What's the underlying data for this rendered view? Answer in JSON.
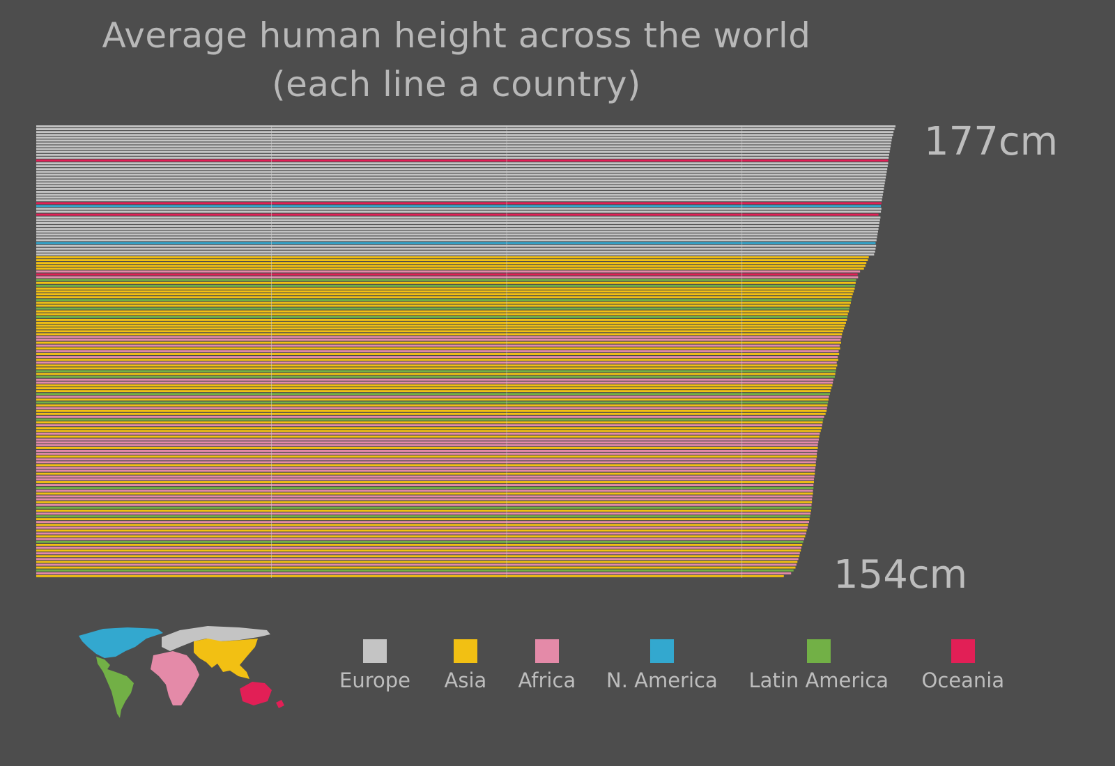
{
  "title_line1": "Average human height across the world",
  "title_line2": "(each line a country)",
  "max_label": "177cm",
  "min_label": "154cm",
  "colors": {
    "background": "#4d4d4d",
    "Europe": "#c4c4c4",
    "Asia": "#f2c013",
    "Africa": "#e48aa8",
    "N. America": "#33a8cf",
    "Latin America": "#72b046",
    "Oceania": "#e21f56",
    "grid": "#d0d0d0"
  },
  "legend": [
    {
      "region": "Europe",
      "label": "Europe"
    },
    {
      "region": "Asia",
      "label": "Asia"
    },
    {
      "region": "Africa",
      "label": "Africa"
    },
    {
      "region": "N. America",
      "label": "N. America"
    },
    {
      "region": "Latin America",
      "label": "Latin America"
    },
    {
      "region": "Oceania",
      "label": "Oceania"
    }
  ],
  "map_icon": "world-map-by-region",
  "chart_data": {
    "type": "bar",
    "orientation": "horizontal",
    "sort": "descending",
    "value_unit": "cm",
    "xlim": [
      0,
      177
    ],
    "grid": "vertical",
    "max_value": 177,
    "min_value": 154,
    "series": [
      {
        "name": "Europe",
        "values": [
          177.0,
          176.8,
          176.6,
          176.5,
          176.3,
          176.2,
          176.1,
          176.0,
          175.9,
          175.8,
          175.7,
          175.6,
          175.5,
          175.4,
          175.3,
          175.2,
          175.1,
          175.0,
          174.9,
          174.8,
          174.7,
          174.6,
          174.5,
          174.4,
          174.3,
          174.2,
          174.1,
          174.0,
          173.9,
          173.8,
          173.7,
          173.6,
          173.5,
          173.4,
          173.3,
          173.2,
          173.1,
          173.0,
          172.9,
          172.8,
          172.6
        ]
      },
      {
        "name": "Asia",
        "values": [
          171.5,
          171.3,
          171.0,
          170.8,
          170.5,
          168.8,
          168.6,
          168.4,
          168.2,
          168.0,
          167.8,
          167.6,
          167.4,
          167.2,
          167.0,
          166.8,
          166.6,
          166.4,
          166.2,
          166.0,
          165.8,
          165.6,
          165.4,
          165.2,
          165.0,
          164.8,
          164.6,
          164.0,
          163.8,
          163.6,
          163.2,
          163.0,
          162.8,
          162.6,
          162.0,
          161.8,
          161.6,
          161.3,
          161.0,
          160.8,
          160.6,
          160.4,
          160.2,
          160.0,
          159.8,
          159.6,
          159.3,
          159.0,
          158.7,
          158.4,
          157.8,
          157.5,
          157.2,
          156.8,
          156.4,
          154.0
        ]
      },
      {
        "name": "Africa",
        "values": [
          169.7,
          169.3,
          165.9,
          165.7,
          165.5,
          165.3,
          165.1,
          164.9,
          164.2,
          164.1,
          163.3,
          162.9,
          162.3,
          161.9,
          161.4,
          161.2,
          161.1,
          161.0,
          160.9,
          160.8,
          160.7,
          160.6,
          160.5,
          160.4,
          160.3,
          160.2,
          160.1,
          160.0,
          159.9,
          159.8,
          159.7,
          159.5,
          159.2,
          158.9,
          158.6,
          158.2,
          157.6,
          157.3,
          157.0,
          156.6,
          155.5
        ]
      },
      {
        "name": "N. America",
        "values": [
          174.0,
          172.9
        ]
      },
      {
        "name": "Latin America",
        "values": [
          168.9,
          168.7,
          167.9,
          167.5,
          167.1,
          164.7,
          164.5,
          163.5,
          163.1,
          162.1,
          160.1,
          159.7,
          159.4,
          158.0,
          156.0
        ]
      },
      {
        "name": "Oceania",
        "values": [
          175.5,
          174.1,
          173.5,
          169.2
        ]
      }
    ],
    "rows": [
      [
        "Europe",
        177.0
      ],
      [
        "Europe",
        176.8
      ],
      [
        "Europe",
        176.6
      ],
      [
        "Europe",
        176.5
      ],
      [
        "Europe",
        176.3
      ],
      [
        "Europe",
        176.2
      ],
      [
        "Europe",
        176.1
      ],
      [
        "Europe",
        176.0
      ],
      [
        "Europe",
        175.9
      ],
      [
        "Europe",
        175.8
      ],
      [
        "Europe",
        175.7
      ],
      [
        "Europe",
        175.6
      ],
      [
        "Oceania",
        175.5
      ],
      [
        "Europe",
        175.5
      ],
      [
        "Europe",
        175.4
      ],
      [
        "Europe",
        175.3
      ],
      [
        "Europe",
        175.2
      ],
      [
        "Europe",
        175.1
      ],
      [
        "Europe",
        175.0
      ],
      [
        "Europe",
        174.9
      ],
      [
        "Europe",
        174.8
      ],
      [
        "Europe",
        174.7
      ],
      [
        "Europe",
        174.6
      ],
      [
        "Europe",
        174.5
      ],
      [
        "Europe",
        174.4
      ],
      [
        "Europe",
        174.3
      ],
      [
        "Europe",
        174.2
      ],
      [
        "Oceania",
        174.1
      ],
      [
        "N. America",
        174.0
      ],
      [
        "Europe",
        174.1
      ],
      [
        "Europe",
        174.0
      ],
      [
        "Oceania",
        173.5
      ],
      [
        "Europe",
        173.9
      ],
      [
        "Europe",
        173.8
      ],
      [
        "Europe",
        173.7
      ],
      [
        "Europe",
        173.6
      ],
      [
        "Europe",
        173.5
      ],
      [
        "Europe",
        173.4
      ],
      [
        "Europe",
        173.3
      ],
      [
        "Europe",
        173.2
      ],
      [
        "Europe",
        173.1
      ],
      [
        "N. America",
        172.9
      ],
      [
        "Europe",
        173.0
      ],
      [
        "Europe",
        172.9
      ],
      [
        "Europe",
        172.8
      ],
      [
        "Europe",
        172.6
      ],
      [
        "Asia",
        171.5
      ],
      [
        "Asia",
        171.3
      ],
      [
        "Asia",
        171.0
      ],
      [
        "Asia",
        170.8
      ],
      [
        "Asia",
        170.5
      ],
      [
        "Africa",
        169.7
      ],
      [
        "Oceania",
        169.2
      ],
      [
        "Africa",
        169.3
      ],
      [
        "Latin America",
        168.9
      ],
      [
        "Asia",
        168.8
      ],
      [
        "Latin America",
        168.7
      ],
      [
        "Asia",
        168.6
      ],
      [
        "Asia",
        168.4
      ],
      [
        "Asia",
        168.2
      ],
      [
        "Asia",
        168.0
      ],
      [
        "Latin America",
        167.9
      ],
      [
        "Asia",
        167.8
      ],
      [
        "Asia",
        167.6
      ],
      [
        "Latin America",
        167.5
      ],
      [
        "Asia",
        167.4
      ],
      [
        "Asia",
        167.2
      ],
      [
        "Latin America",
        167.1
      ],
      [
        "Asia",
        167.0
      ],
      [
        "Asia",
        166.8
      ],
      [
        "Asia",
        166.6
      ],
      [
        "Asia",
        166.4
      ],
      [
        "Asia",
        166.2
      ],
      [
        "Asia",
        166.0
      ],
      [
        "Africa",
        165.9
      ],
      [
        "Africa",
        165.7
      ],
      [
        "Asia",
        165.8
      ],
      [
        "Africa",
        165.5
      ],
      [
        "Asia",
        165.6
      ],
      [
        "Africa",
        165.3
      ],
      [
        "Asia",
        165.4
      ],
      [
        "Africa",
        165.1
      ],
      [
        "Asia",
        165.2
      ],
      [
        "Africa",
        164.9
      ],
      [
        "Asia",
        165.0
      ],
      [
        "Asia",
        164.8
      ],
      [
        "Latin America",
        164.7
      ],
      [
        "Asia",
        164.6
      ],
      [
        "Latin America",
        164.5
      ],
      [
        "Africa",
        164.2
      ],
      [
        "Africa",
        164.1
      ],
      [
        "Asia",
        164.0
      ],
      [
        "Asia",
        163.8
      ],
      [
        "Asia",
        163.6
      ],
      [
        "Latin America",
        163.5
      ],
      [
        "Africa",
        163.3
      ],
      [
        "Asia",
        163.2
      ],
      [
        "Latin America",
        163.1
      ],
      [
        "Asia",
        163.0
      ],
      [
        "Africa",
        162.9
      ],
      [
        "Asia",
        162.8
      ],
      [
        "Asia",
        162.6
      ],
      [
        "Africa",
        162.3
      ],
      [
        "Latin America",
        162.1
      ],
      [
        "Asia",
        162.0
      ],
      [
        "Africa",
        161.9
      ],
      [
        "Asia",
        161.8
      ],
      [
        "Asia",
        161.6
      ],
      [
        "Africa",
        161.4
      ],
      [
        "Asia",
        161.3
      ],
      [
        "Africa",
        161.2
      ],
      [
        "Africa",
        161.1
      ],
      [
        "Africa",
        161.0
      ],
      [
        "Asia",
        161.0
      ],
      [
        "Africa",
        160.9
      ],
      [
        "Africa",
        160.8
      ],
      [
        "Asia",
        160.8
      ],
      [
        "Africa",
        160.7
      ],
      [
        "Africa",
        160.6
      ],
      [
        "Asia",
        160.6
      ],
      [
        "Africa",
        160.5
      ],
      [
        "Africa",
        160.4
      ],
      [
        "Asia",
        160.4
      ],
      [
        "Africa",
        160.3
      ],
      [
        "Africa",
        160.2
      ],
      [
        "Asia",
        160.2
      ],
      [
        "Africa",
        160.1
      ],
      [
        "Latin America",
        160.1
      ],
      [
        "Africa",
        160.0
      ],
      [
        "Asia",
        160.0
      ],
      [
        "Africa",
        159.9
      ],
      [
        "Africa",
        159.8
      ],
      [
        "Asia",
        159.8
      ],
      [
        "Africa",
        159.7
      ],
      [
        "Latin America",
        159.7
      ],
      [
        "Asia",
        159.6
      ],
      [
        "Africa",
        159.5
      ],
      [
        "Latin America",
        159.4
      ],
      [
        "Asia",
        159.3
      ],
      [
        "Africa",
        159.2
      ],
      [
        "Asia",
        159.0
      ],
      [
        "Africa",
        158.9
      ],
      [
        "Asia",
        158.7
      ],
      [
        "Africa",
        158.6
      ],
      [
        "Asia",
        158.4
      ],
      [
        "Africa",
        158.2
      ],
      [
        "Latin America",
        158.0
      ],
      [
        "Asia",
        157.8
      ],
      [
        "Africa",
        157.6
      ],
      [
        "Asia",
        157.5
      ],
      [
        "Africa",
        157.3
      ],
      [
        "Asia",
        157.2
      ],
      [
        "Africa",
        157.0
      ],
      [
        "Asia",
        156.8
      ],
      [
        "Africa",
        156.6
      ],
      [
        "Asia",
        156.4
      ],
      [
        "Latin America",
        156.0
      ],
      [
        "Africa",
        155.5
      ],
      [
        "Asia",
        154.0
      ]
    ]
  }
}
